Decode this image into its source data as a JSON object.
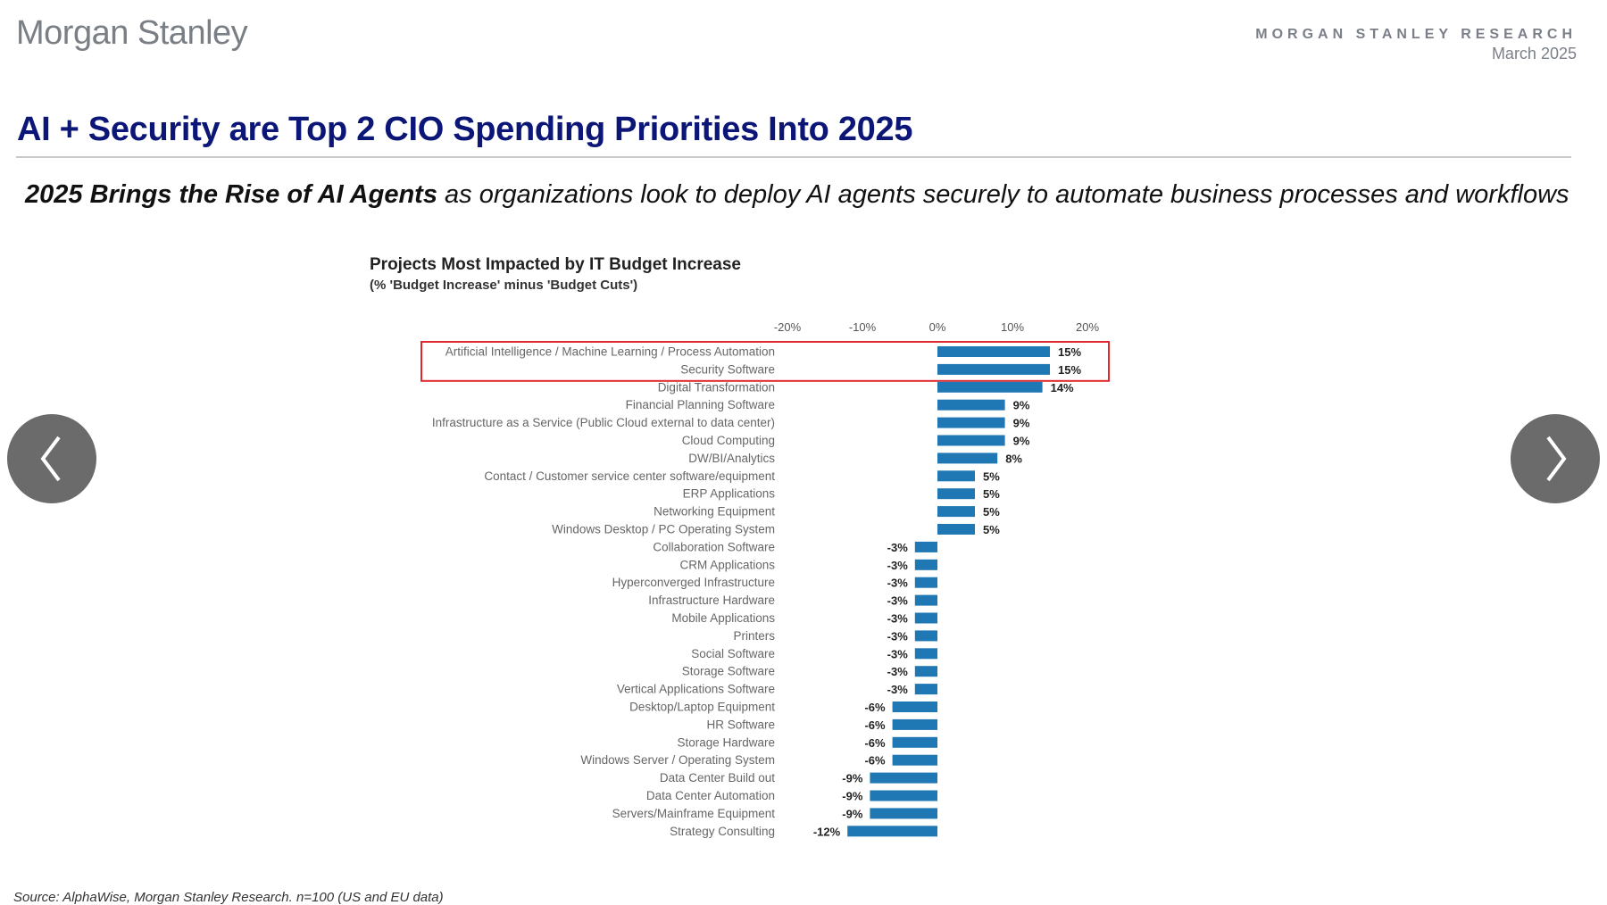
{
  "header": {
    "logo_text": "Morgan Stanley",
    "research_label": "MORGAN STANLEY RESEARCH",
    "date": "March 2025"
  },
  "slide": {
    "title": "AI + Security are Top 2 CIO Spending Priorities Into 2025",
    "subtitle_bold": "2025 Brings the Rise of AI Agents",
    "subtitle_rest": " as organizations look to deploy AI agents securely to automate business processes and workflows",
    "source": "Source: AlphaWise, Morgan Stanley Research. n=100 (US and EU data)"
  },
  "navigation": {
    "prev_icon": "chevron-left-icon",
    "next_icon": "chevron-right-icon"
  },
  "colors": {
    "bar": "#1f78b4",
    "highlight_box": "#e0272b",
    "title": "#0b1677"
  },
  "chart_data": {
    "type": "bar",
    "orientation": "horizontal",
    "title": "Projects Most Impacted by IT Budget Increase",
    "subtitle": "(% 'Budget Increase' minus 'Budget Cuts')",
    "xlim": [
      -20,
      20
    ],
    "xticks": [
      -20,
      -10,
      0,
      10,
      20
    ],
    "xtick_labels": [
      "-20%",
      "-10%",
      "0%",
      "10%",
      "20%"
    ],
    "highlighted_categories": [
      "Artificial Intelligence / Machine Learning / Process Automation",
      "Security Software"
    ],
    "categories": [
      "Artificial Intelligence / Machine Learning / Process Automation",
      "Security Software",
      "Digital Transformation",
      "Financial Planning Software",
      "Infrastructure as a Service (Public Cloud external to data center)",
      "Cloud Computing",
      "DW/BI/Analytics",
      "Contact / Customer service center software/equipment",
      "ERP Applications",
      "Networking Equipment",
      "Windows Desktop / PC Operating System",
      "Collaboration Software",
      "CRM Applications",
      "Hyperconverged Infrastructure",
      "Infrastructure Hardware",
      "Mobile Applications",
      "Printers",
      "Social Software",
      "Storage Software",
      "Vertical Applications Software",
      "Desktop/Laptop Equipment",
      "HR Software",
      "Storage Hardware",
      "Windows Server / Operating System",
      "Data Center Build out",
      "Data Center Automation",
      "Servers/Mainframe Equipment",
      "Strategy Consulting"
    ],
    "values": [
      15,
      15,
      14,
      9,
      9,
      9,
      8,
      5,
      5,
      5,
      5,
      -3,
      -3,
      -3,
      -3,
      -3,
      -3,
      -3,
      -3,
      -3,
      -6,
      -6,
      -6,
      -6,
      -9,
      -9,
      -9,
      -12
    ],
    "value_labels": [
      "15%",
      "15%",
      "14%",
      "9%",
      "9%",
      "9%",
      "8%",
      "5%",
      "5%",
      "5%",
      "5%",
      "-3%",
      "-3%",
      "-3%",
      "-3%",
      "-3%",
      "-3%",
      "-3%",
      "-3%",
      "-3%",
      "-6%",
      "-6%",
      "-6%",
      "-6%",
      "-9%",
      "-9%",
      "-9%",
      "-12%"
    ]
  }
}
